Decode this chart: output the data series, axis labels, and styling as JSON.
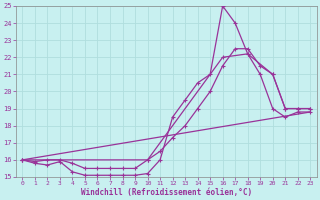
{
  "xlabel": "Windchill (Refroidissement éolien,°C)",
  "background_color": "#c8f0f0",
  "grid_color": "#b0dede",
  "line_color": "#993399",
  "xlim": [
    -0.5,
    23.5
  ],
  "ylim": [
    15,
    25
  ],
  "xticks": [
    0,
    1,
    2,
    3,
    4,
    5,
    6,
    7,
    8,
    9,
    10,
    11,
    12,
    13,
    14,
    15,
    16,
    17,
    18,
    19,
    20,
    21,
    22,
    23
  ],
  "yticks": [
    15,
    16,
    17,
    18,
    19,
    20,
    21,
    22,
    23,
    24,
    25
  ],
  "line1_x": [
    0,
    1,
    2,
    3,
    4,
    5,
    6,
    7,
    8,
    9,
    10,
    11,
    12,
    13,
    14,
    15,
    16,
    17,
    18,
    19,
    20,
    21,
    22,
    23
  ],
  "line1_y": [
    16,
    15.8,
    15.7,
    15.9,
    15.3,
    15.1,
    15.1,
    15.1,
    15.1,
    15.1,
    15.2,
    16.0,
    18.5,
    19.5,
    20.5,
    21.0,
    25.0,
    24.0,
    22.2,
    21.0,
    19.0,
    18.5,
    18.8,
    18.8
  ],
  "line2_x": [
    0,
    1,
    2,
    3,
    4,
    5,
    6,
    7,
    8,
    9,
    10,
    11,
    12,
    13,
    14,
    15,
    16,
    17,
    18,
    19,
    20,
    21,
    22,
    23
  ],
  "line2_y": [
    16,
    15.9,
    16.0,
    16.0,
    15.8,
    15.5,
    15.5,
    15.5,
    15.5,
    15.5,
    16.0,
    16.5,
    17.3,
    18.0,
    19.0,
    20.0,
    21.5,
    22.5,
    22.5,
    21.5,
    21.0,
    19.0,
    19.0,
    19.0
  ],
  "line3_x": [
    0,
    23
  ],
  "line3_y": [
    16,
    18.8
  ],
  "line4_x": [
    0,
    10,
    16,
    18,
    20,
    21,
    22,
    23
  ],
  "line4_y": [
    16,
    16,
    22,
    22.2,
    21.0,
    19.0,
    19.0,
    19.0
  ]
}
